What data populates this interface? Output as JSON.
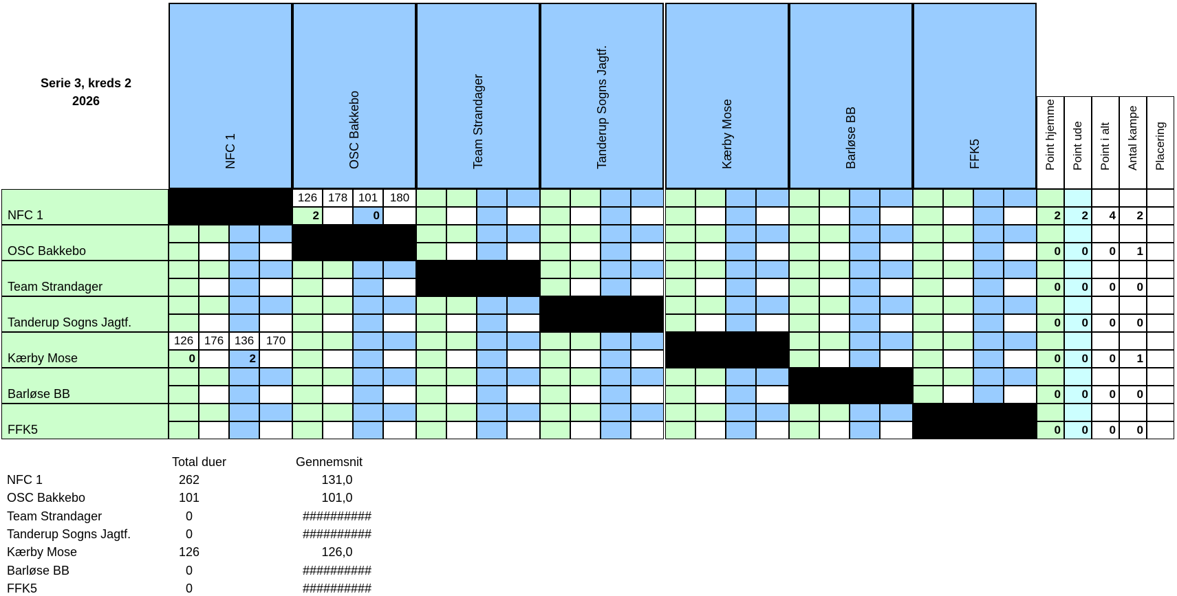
{
  "title_line1": "Serie 3, kreds 2",
  "title_line2": "2026",
  "teams": [
    "NFC 1",
    "OSC Bakkebo",
    "Team Strandager",
    "Tanderup Sogns Jagtf.",
    "Kærby Mose",
    "Barløse BB",
    "FFK5"
  ],
  "stat_headers": [
    "Point hjemme",
    "Point ude",
    "Point i alt",
    "Antal kampe",
    "Placering"
  ],
  "matches": [
    {
      "row": 0,
      "col": 1,
      "birds": [
        "126",
        "178",
        "101",
        "180"
      ],
      "points": [
        "2",
        "",
        "0",
        ""
      ]
    },
    {
      "row": 4,
      "col": 0,
      "birds": [
        "126",
        "176",
        "136",
        "170"
      ],
      "points": [
        "0",
        "",
        "2",
        ""
      ]
    }
  ],
  "stats": [
    [
      "2",
      "2",
      "4",
      "2",
      ""
    ],
    [
      "0",
      "0",
      "0",
      "1",
      ""
    ],
    [
      "0",
      "0",
      "0",
      "0",
      ""
    ],
    [
      "0",
      "0",
      "0",
      "0",
      ""
    ],
    [
      "0",
      "0",
      "0",
      "1",
      ""
    ],
    [
      "0",
      "0",
      "0",
      "0",
      ""
    ],
    [
      "0",
      "0",
      "0",
      "0",
      ""
    ]
  ],
  "summary": {
    "header_total": "Total duer",
    "header_avg": "Gennemsnit",
    "rows": [
      {
        "team": "NFC 1",
        "total": "262",
        "avg": "131,0"
      },
      {
        "team": "OSC Bakkebo",
        "total": "101",
        "avg": "101,0"
      },
      {
        "team": "Team Strandager",
        "total": "0",
        "avg": "##########"
      },
      {
        "team": "Tanderup Sogns Jagtf.",
        "total": "0",
        "avg": "##########"
      },
      {
        "team": "Kærby Mose",
        "total": "126",
        "avg": "126,0"
      },
      {
        "team": "Barløse BB",
        "total": "0",
        "avg": "##########"
      },
      {
        "team": "FFK5",
        "total": "0",
        "avg": "##########"
      }
    ]
  },
  "colors": {
    "green": "#ccffcc",
    "blue": "#99ccff",
    "light_cyan": "#ccffff",
    "black": "#000000"
  }
}
